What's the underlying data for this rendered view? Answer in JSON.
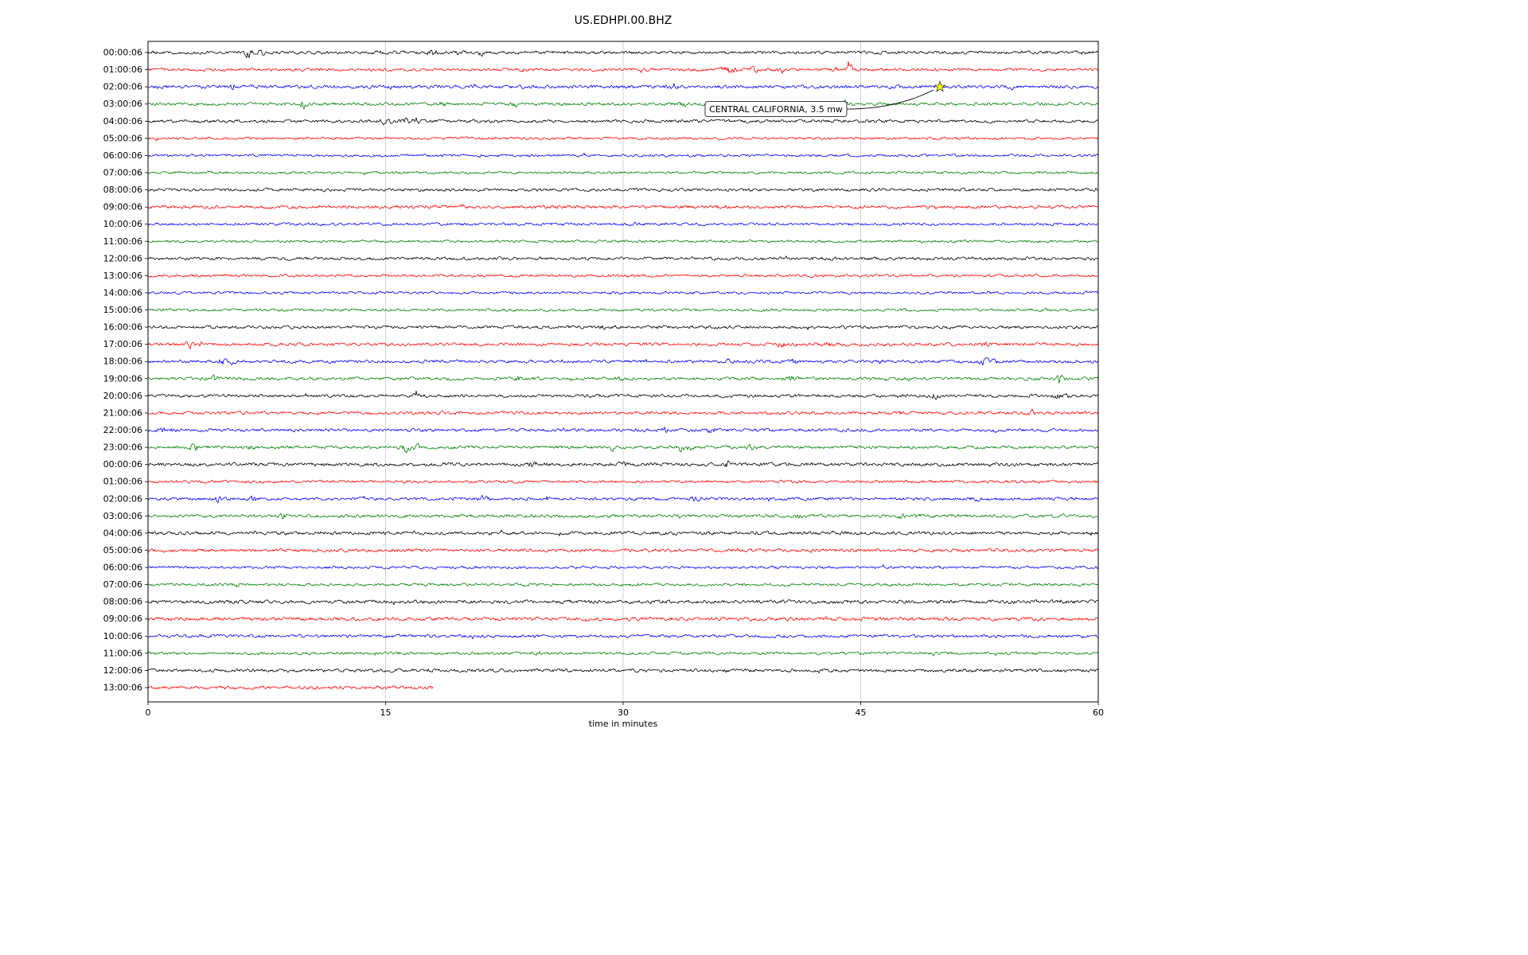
{
  "chart_data": {
    "type": "line",
    "variant": "helicorder-seismogram",
    "title": "US.EDHPI.00.BHZ",
    "xlabel": "time in minutes",
    "xlim": [
      0,
      60
    ],
    "x_ticks": [
      0,
      15,
      30,
      45,
      60
    ],
    "grid_minutes": [
      15,
      30,
      45
    ],
    "grid_color": "#c8c8c8",
    "color_cycle": [
      "#000000",
      "#ff0000",
      "#0000ff",
      "#008000"
    ],
    "annotation": {
      "text": "CENTRAL CALIFORNIA, 3.5 mw",
      "marker": "star",
      "marker_color": "#ffff00",
      "row_label": "02:00:06",
      "minute": 50
    },
    "rows": [
      {
        "label": "00:00:06",
        "color": "#000000",
        "amp": 1.8,
        "bursts": [
          [
            6.3,
            5,
            0.25
          ],
          [
            7.1,
            3.5,
            0.2
          ],
          [
            14.5,
            1.5,
            0.3
          ],
          [
            17.9,
            3.5,
            0.35
          ],
          [
            19.6,
            2.5,
            0.2
          ],
          [
            21.0,
            3,
            0.15
          ],
          [
            58.8,
            1.5,
            0.2
          ]
        ]
      },
      {
        "label": "01:00:06",
        "color": "#ff0000",
        "amp": 1.7,
        "bursts": [
          [
            36.8,
            5,
            0.5
          ],
          [
            38.3,
            2.5,
            0.3
          ],
          [
            40.0,
            3.5,
            0.15
          ],
          [
            43.4,
            2.5,
            0.15
          ],
          [
            44.3,
            5,
            0.2
          ]
        ]
      },
      {
        "label": "02:00:06",
        "color": "#0000ff",
        "amp": 2.0,
        "bursts": [
          [
            5.4,
            4,
            0.15
          ],
          [
            33.0,
            1,
            0.4
          ]
        ]
      },
      {
        "label": "03:00:06",
        "color": "#008000",
        "amp": 1.8,
        "bursts": [
          [
            9.8,
            5,
            0.2
          ],
          [
            18.6,
            3,
            0.2
          ],
          [
            23.2,
            2,
            0.2
          ],
          [
            33.8,
            2.5,
            0.25
          ],
          [
            41.0,
            1.5,
            0.3
          ],
          [
            44.0,
            3,
            0.3
          ]
        ]
      },
      {
        "label": "04:00:06",
        "color": "#000000",
        "amp": 1.8,
        "bursts": [
          [
            14.9,
            2,
            0.3
          ],
          [
            15.5,
            2,
            0.2
          ],
          [
            16.1,
            3.5,
            0.3
          ],
          [
            16.9,
            3.5,
            0.25
          ]
        ]
      },
      {
        "label": "05:00:06",
        "color": "#ff0000",
        "amp": 1.5,
        "bursts": []
      },
      {
        "label": "06:00:06",
        "color": "#0000ff",
        "amp": 1.5,
        "bursts": []
      },
      {
        "label": "07:00:06",
        "color": "#008000",
        "amp": 1.5,
        "bursts": []
      },
      {
        "label": "08:00:06",
        "color": "#000000",
        "amp": 1.8,
        "bursts": []
      },
      {
        "label": "09:00:06",
        "color": "#ff0000",
        "amp": 1.9,
        "bursts": []
      },
      {
        "label": "10:00:06",
        "color": "#0000ff",
        "amp": 1.6,
        "bursts": []
      },
      {
        "label": "11:00:06",
        "color": "#008000",
        "amp": 1.5,
        "bursts": []
      },
      {
        "label": "12:00:06",
        "color": "#000000",
        "amp": 1.8,
        "bursts": []
      },
      {
        "label": "13:00:06",
        "color": "#ff0000",
        "amp": 1.6,
        "bursts": []
      },
      {
        "label": "14:00:06",
        "color": "#0000ff",
        "amp": 1.5,
        "bursts": []
      },
      {
        "label": "15:00:06",
        "color": "#008000",
        "amp": 1.5,
        "bursts": [
          [
            1.0,
            1,
            0.3
          ]
        ]
      },
      {
        "label": "16:00:06",
        "color": "#000000",
        "amp": 1.8,
        "bursts": [
          [
            28.8,
            1.5,
            0.2
          ]
        ]
      },
      {
        "label": "17:00:06",
        "color": "#ff0000",
        "amp": 1.8,
        "bursts": [
          [
            2.6,
            3.5,
            0.25
          ],
          [
            3.3,
            2.5,
            0.2
          ],
          [
            40.0,
            2.5,
            0.25
          ],
          [
            43.0,
            2.5,
            0.25
          ],
          [
            53.0,
            1.5,
            0.3
          ]
        ]
      },
      {
        "label": "18:00:06",
        "color": "#0000ff",
        "amp": 1.8,
        "bursts": [
          [
            4.6,
            3,
            0.3
          ],
          [
            5.3,
            2,
            0.2
          ],
          [
            36.6,
            2,
            0.25
          ],
          [
            40.8,
            2.5,
            0.2
          ],
          [
            46.2,
            2,
            0.2
          ],
          [
            52.8,
            3,
            0.3
          ],
          [
            53.5,
            2,
            0.2
          ]
        ]
      },
      {
        "label": "19:00:06",
        "color": "#008000",
        "amp": 1.8,
        "bursts": [
          [
            4.2,
            3.5,
            0.2
          ],
          [
            23.4,
            2.5,
            0.25
          ],
          [
            29.8,
            2,
            0.2
          ],
          [
            40.6,
            3.5,
            0.25
          ],
          [
            47.9,
            2,
            0.2
          ],
          [
            57.6,
            3.5,
            0.25
          ]
        ]
      },
      {
        "label": "20:00:06",
        "color": "#000000",
        "amp": 1.8,
        "bursts": [
          [
            16.9,
            6,
            0.12
          ],
          [
            17.4,
            2,
            0.2
          ],
          [
            49.7,
            2.5,
            0.3
          ],
          [
            57.4,
            3,
            0.2
          ],
          [
            58.1,
            2,
            0.2
          ]
        ]
      },
      {
        "label": "21:00:06",
        "color": "#ff0000",
        "amp": 1.8,
        "bursts": [
          [
            47.6,
            2,
            0.2
          ],
          [
            55.8,
            3.5,
            0.2
          ]
        ]
      },
      {
        "label": "22:00:06",
        "color": "#0000ff",
        "amp": 1.8,
        "bursts": [
          [
            0.8,
            3.5,
            0.25
          ],
          [
            1.6,
            2,
            0.2
          ],
          [
            32.6,
            2.5,
            0.2
          ],
          [
            35.6,
            3.5,
            0.25
          ]
        ]
      },
      {
        "label": "23:00:06",
        "color": "#008000",
        "amp": 1.8,
        "bursts": [
          [
            2.9,
            3.5,
            0.25
          ],
          [
            6.6,
            2.5,
            0.2
          ],
          [
            16.3,
            4,
            0.3
          ],
          [
            17.0,
            3,
            0.2
          ],
          [
            29.3,
            2.5,
            0.2
          ],
          [
            33.6,
            3.5,
            0.25
          ],
          [
            34.2,
            2.5,
            0.2
          ],
          [
            38.1,
            2.5,
            0.2
          ]
        ]
      },
      {
        "label": "00:00:06",
        "color": "#000000",
        "amp": 2.0,
        "bursts": [
          [
            24.3,
            2.5,
            0.3
          ],
          [
            30.0,
            1.5,
            0.3
          ],
          [
            36.6,
            3.5,
            0.2
          ]
        ]
      },
      {
        "label": "01:00:06",
        "color": "#ff0000",
        "amp": 1.6,
        "bursts": []
      },
      {
        "label": "02:00:06",
        "color": "#0000ff",
        "amp": 1.8,
        "bursts": [
          [
            4.5,
            4,
            0.2
          ],
          [
            6.7,
            2.5,
            0.25
          ],
          [
            21.2,
            2.5,
            0.3
          ],
          [
            25.1,
            2.5,
            0.2
          ],
          [
            34.6,
            2,
            0.3
          ],
          [
            52.2,
            2,
            0.25
          ]
        ]
      },
      {
        "label": "03:00:06",
        "color": "#008000",
        "amp": 1.8,
        "bursts": [
          [
            8.5,
            3.5,
            0.2
          ],
          [
            41.0,
            1.5,
            0.3
          ],
          [
            47.6,
            2.5,
            0.25
          ],
          [
            48.7,
            2.5,
            0.25
          ]
        ]
      },
      {
        "label": "04:00:06",
        "color": "#000000",
        "amp": 1.9,
        "bursts": []
      },
      {
        "label": "05:00:06",
        "color": "#ff0000",
        "amp": 1.9,
        "bursts": []
      },
      {
        "label": "06:00:06",
        "color": "#0000ff",
        "amp": 1.6,
        "bursts": []
      },
      {
        "label": "07:00:06",
        "color": "#008000",
        "amp": 1.6,
        "bursts": [
          [
            5.6,
            1.5,
            0.25
          ]
        ]
      },
      {
        "label": "08:00:06",
        "color": "#000000",
        "amp": 2.1,
        "bursts": []
      },
      {
        "label": "09:00:06",
        "color": "#ff0000",
        "amp": 2.1,
        "bursts": []
      },
      {
        "label": "10:00:06",
        "color": "#0000ff",
        "amp": 1.8,
        "bursts": []
      },
      {
        "label": "11:00:06",
        "color": "#008000",
        "amp": 1.6,
        "bursts": [
          [
            7.0,
            1.2,
            0.3
          ]
        ]
      },
      {
        "label": "12:00:06",
        "color": "#000000",
        "amp": 1.9,
        "bursts": []
      },
      {
        "label": "13:00:06",
        "color": "#ff0000",
        "amp": 1.9,
        "end": 18,
        "bursts": []
      }
    ]
  }
}
